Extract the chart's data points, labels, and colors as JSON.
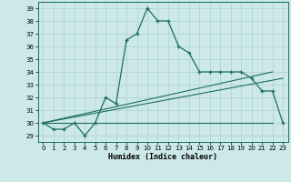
{
  "xlabel": "Humidex (Indice chaleur)",
  "ylabel": "",
  "background_color": "#cce8e8",
  "grid_color": "#b0d0d0",
  "line_color": "#1a6e64",
  "xlim": [
    -0.5,
    23.5
  ],
  "ylim": [
    28.5,
    39.5
  ],
  "yticks": [
    29,
    30,
    31,
    32,
    33,
    34,
    35,
    36,
    37,
    38,
    39
  ],
  "xticks": [
    0,
    1,
    2,
    3,
    4,
    5,
    6,
    7,
    8,
    9,
    10,
    11,
    12,
    13,
    14,
    15,
    16,
    17,
    18,
    19,
    20,
    21,
    22,
    23
  ],
  "main_y": [
    30.0,
    29.5,
    29.5,
    30.0,
    29.0,
    30.0,
    32.0,
    31.5,
    36.5,
    37.0,
    39.0,
    38.0,
    38.0,
    36.0,
    35.5,
    34.0,
    34.0,
    34.0,
    34.0,
    34.0,
    33.5,
    32.5,
    32.5,
    30.0
  ],
  "trend1_x": [
    0,
    22
  ],
  "trend1_y": [
    30.0,
    30.0
  ],
  "trend2_x": [
    0,
    23
  ],
  "trend2_y": [
    30.0,
    33.5
  ],
  "trend3_x": [
    0,
    22
  ],
  "trend3_y": [
    30.0,
    34.0
  ]
}
